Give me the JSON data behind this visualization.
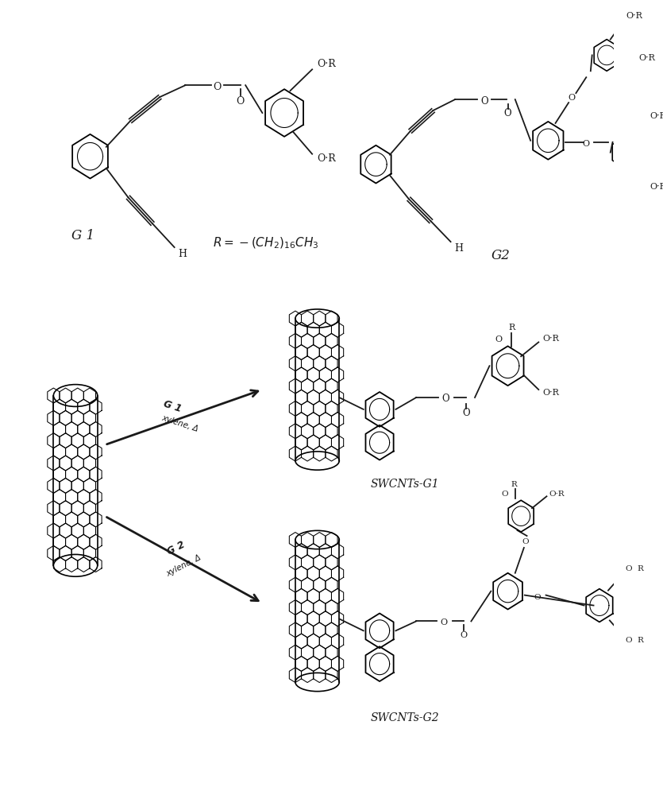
{
  "bg_color": "#ffffff",
  "line_color": "#1a1a1a",
  "fig_width": 8.35,
  "fig_height": 10.0,
  "g1_label": "G 1",
  "g2_label": "G2",
  "r_formula": "R=-(CH₂)₁₆CH₃",
  "swcnts_g1_label": "SWCNTs-G1",
  "swcnts_g2_label": "SWCNTs-G2",
  "arrow1_g_label": "G 1",
  "arrow1_sub_label": "xylene, Δ",
  "arrow2_g_label": "G 2",
  "arrow2_sub_label": "xylene, Δ"
}
